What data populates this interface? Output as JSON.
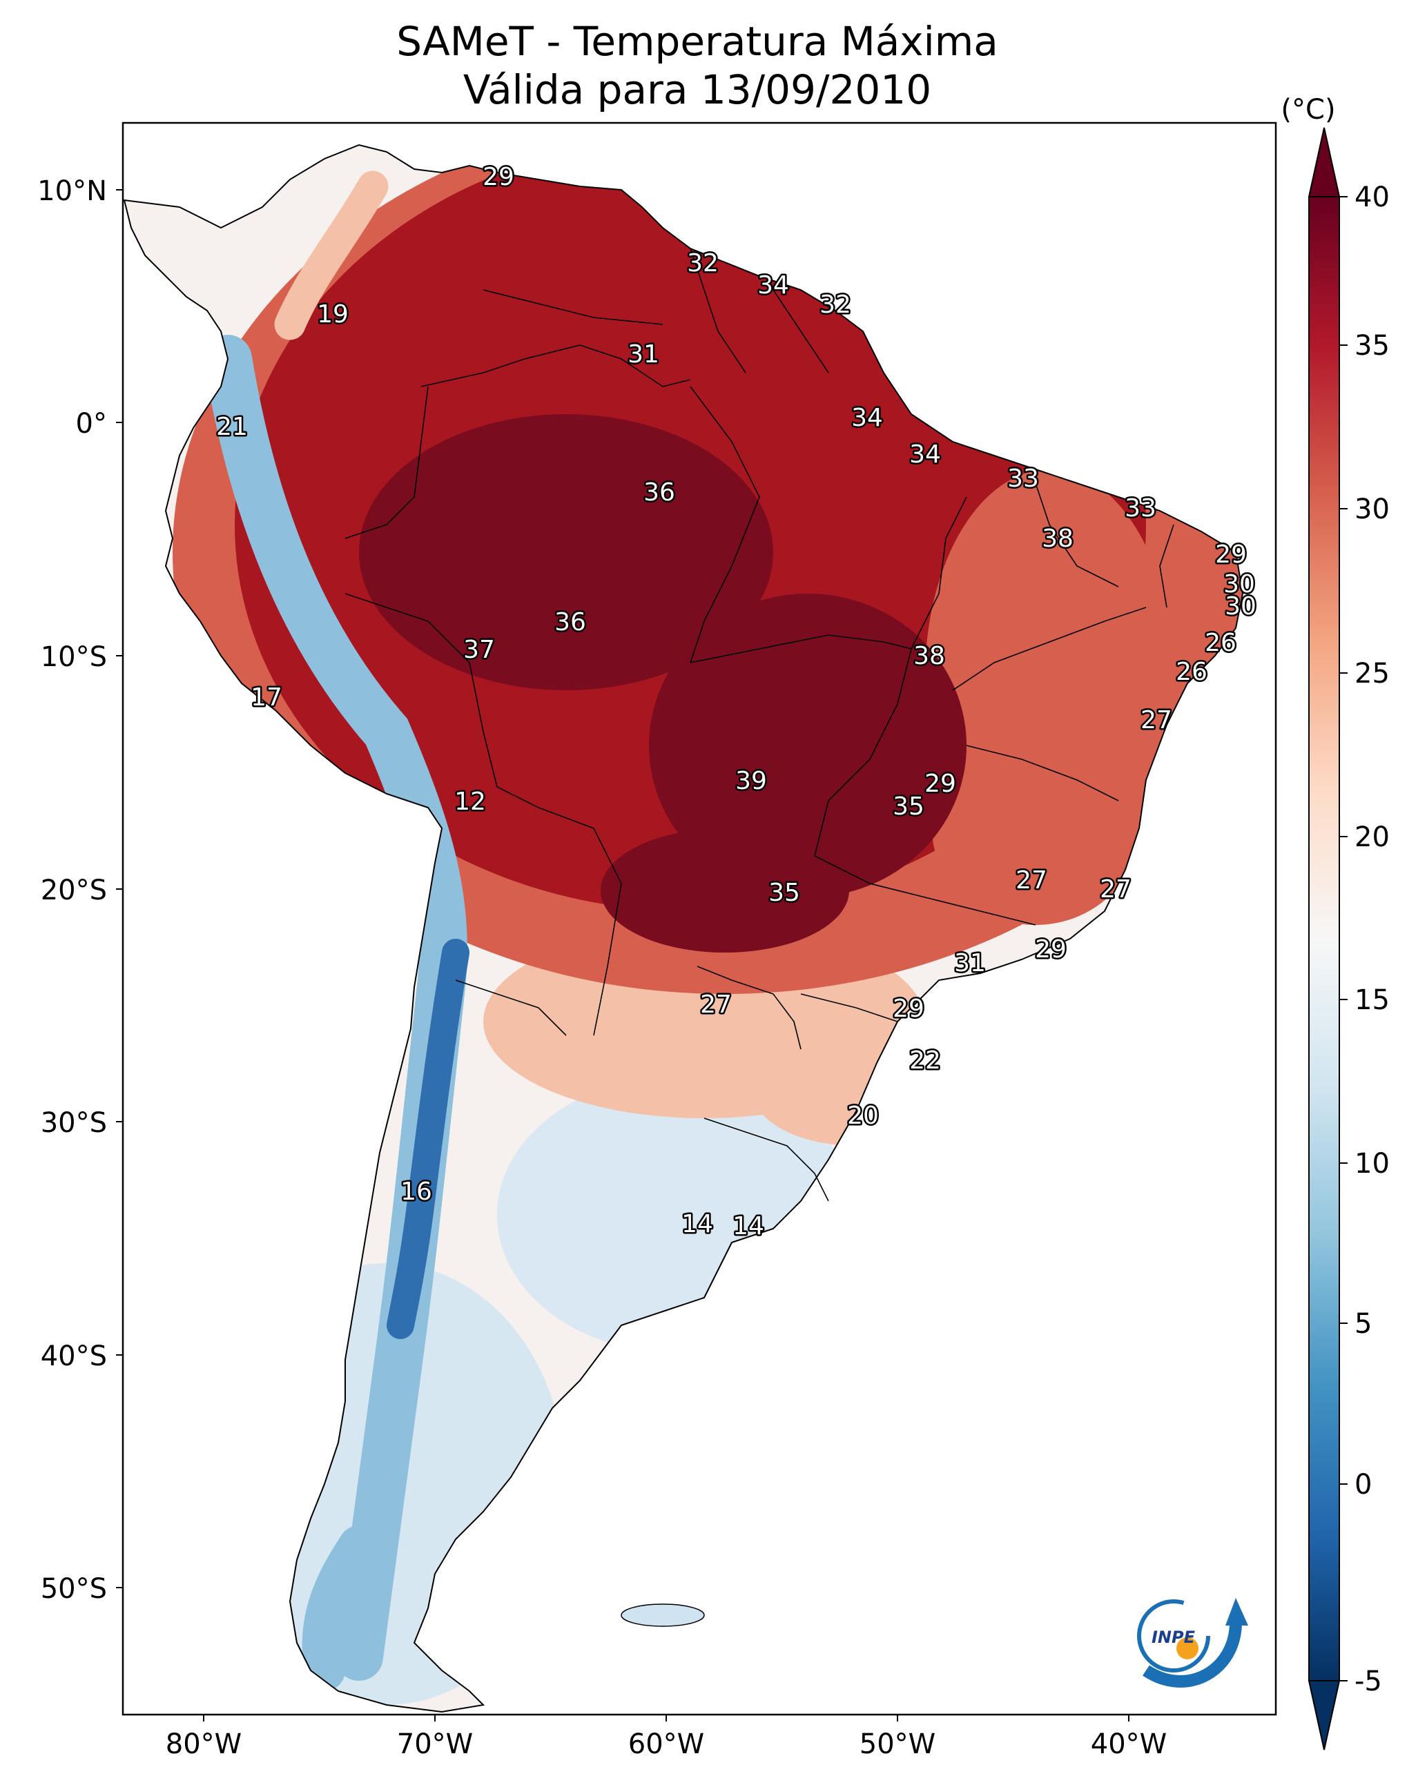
{
  "title": {
    "line1": "SAMeT - Temperatura Máxima",
    "line2": "Válida para 13/09/2010"
  },
  "colorbar": {
    "unit_label": "(°C)",
    "ticks": [
      "40",
      "35",
      "30",
      "25",
      "20",
      "15",
      "10",
      "5",
      "0",
      "-5"
    ],
    "min": -5,
    "max": 40,
    "colors": [
      "#053061",
      "#2166ac",
      "#4393c3",
      "#92c5de",
      "#d1e5f0",
      "#f7f7f7",
      "#fddbc7",
      "#f4a582",
      "#d6604d",
      "#b2182b",
      "#67001f"
    ]
  },
  "axes": {
    "lat_ticks": [
      "10°N",
      "0°",
      "10°S",
      "20°S",
      "30°S",
      "40°S",
      "50°S"
    ],
    "lon_ticks": [
      "80°W",
      "70°W",
      "60°W",
      "50°W",
      "40°W"
    ]
  },
  "map_colors": {
    "hot_core": "#7a0c1f",
    "hot": "#a8161f",
    "warm": "#d6604d",
    "mild": "#f4c1a8",
    "neutral": "#f6f1ee",
    "cool": "#d6e7f2",
    "cold": "#8ebfdc",
    "andes": "#2f6fb0"
  },
  "logo": {
    "text": "INPE",
    "ring_color": "#1b6fb4",
    "dot_color": "#f4a11e"
  },
  "stations": [
    {
      "value": "29"
    },
    {
      "value": "32"
    },
    {
      "value": "34"
    },
    {
      "value": "32"
    },
    {
      "value": "19"
    },
    {
      "value": "31"
    },
    {
      "value": "21"
    },
    {
      "value": "34"
    },
    {
      "value": "34"
    },
    {
      "value": "33"
    },
    {
      "value": "36"
    },
    {
      "value": "33"
    },
    {
      "value": "38"
    },
    {
      "value": "29"
    },
    {
      "value": "30"
    },
    {
      "value": "30"
    },
    {
      "value": "36"
    },
    {
      "value": "37"
    },
    {
      "value": "38"
    },
    {
      "value": "26"
    },
    {
      "value": "26"
    },
    {
      "value": "17"
    },
    {
      "value": "27"
    },
    {
      "value": "39"
    },
    {
      "value": "29"
    },
    {
      "value": "12"
    },
    {
      "value": "35"
    },
    {
      "value": "27"
    },
    {
      "value": "27"
    },
    {
      "value": "35"
    },
    {
      "value": "29"
    },
    {
      "value": "31"
    },
    {
      "value": "27"
    },
    {
      "value": "29"
    },
    {
      "value": "22"
    },
    {
      "value": "20"
    },
    {
      "value": "16"
    },
    {
      "value": "14"
    },
    {
      "value": "14"
    }
  ]
}
